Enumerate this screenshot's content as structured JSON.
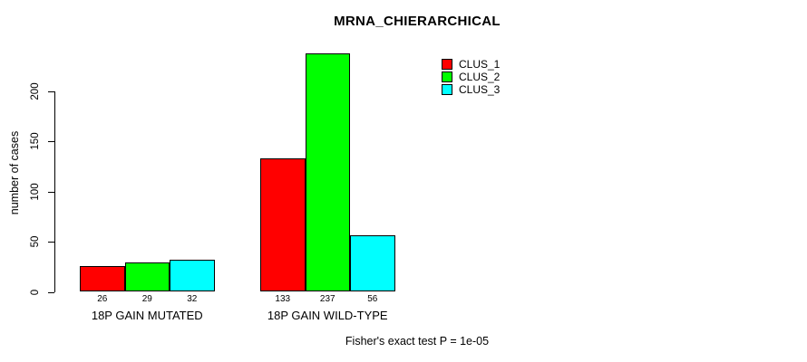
{
  "chart_data": {
    "type": "bar",
    "title": "MRNA_CHIERARCHICAL",
    "ylabel": "number of cases",
    "xlabel": "",
    "categories": [
      "18P GAIN MUTATED",
      "18P GAIN WILD-TYPE"
    ],
    "series": [
      {
        "name": "CLUS_1",
        "color": "#FF0000",
        "values": [
          26,
          133
        ]
      },
      {
        "name": "CLUS_2",
        "color": "#00FF00",
        "values": [
          29,
          237
        ]
      },
      {
        "name": "CLUS_3",
        "color": "#00FFFF",
        "values": [
          32,
          56
        ]
      }
    ],
    "bar_value_labels": [
      [
        "26",
        "29",
        "32"
      ],
      [
        "133",
        "237",
        "56"
      ]
    ],
    "yticks": [
      0,
      50,
      100,
      150,
      200
    ],
    "ylim": [
      0,
      240
    ],
    "grid": false,
    "legend_position": "top-right-inside",
    "annotation": "Fisher's exact test P = 1e-05",
    "colors": {
      "bar_border": "#000000",
      "axis": "#000000",
      "background": "#FFFFFF",
      "text": "#000000"
    }
  }
}
